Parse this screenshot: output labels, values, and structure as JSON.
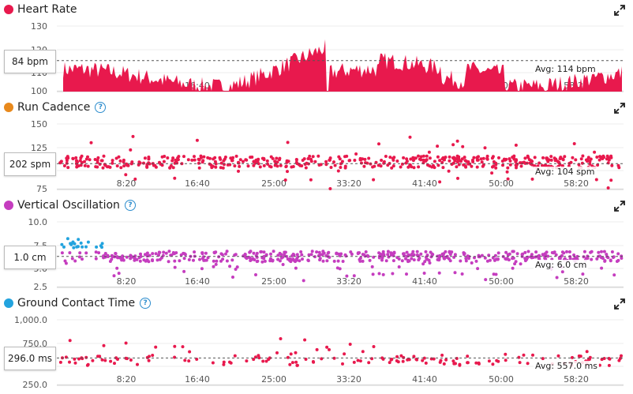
{
  "x_ticks": [
    "8:20",
    "16:40",
    "25:00",
    "33:20",
    "41:40",
    "50:00",
    "58:20"
  ],
  "panels": [
    {
      "key": "hr",
      "title": "Heart Rate",
      "color": "#e8194d",
      "help": false,
      "y_ticks": [
        "130",
        "120",
        "110",
        "100"
      ],
      "current": "84 bpm",
      "avg": "Avg: 114 bpm"
    },
    {
      "key": "cad",
      "title": "Run Cadence",
      "color": "#e8891c",
      "help": true,
      "y_ticks": [
        "150",
        "125",
        "100",
        "75"
      ],
      "current": "202 spm",
      "avg": "Avg: 104 spm"
    },
    {
      "key": "vo",
      "title": "Vertical Oscillation",
      "color": "#c53dbf",
      "help": true,
      "y_ticks": [
        "10.0",
        "7.5",
        "5.0",
        "2.5"
      ],
      "current": "1.0 cm",
      "avg": "Avg: 6.0 cm"
    },
    {
      "key": "gct",
      "title": "Ground Contact Time",
      "color": "#22a3de",
      "help": true,
      "y_ticks": [
        "1,000.0",
        "750.0",
        "500.0",
        "250.0"
      ],
      "current": "296.0 ms",
      "avg": "Avg: 557.0 ms"
    }
  ],
  "chart_data": [
    {
      "type": "area",
      "ylim": [
        100,
        130
      ],
      "avg": 114,
      "y_ticks": [
        130,
        120,
        110,
        100
      ]
    },
    {
      "type": "scatter",
      "ylim": [
        75,
        150
      ],
      "avg": 104,
      "y_ticks": [
        150,
        125,
        100,
        75
      ]
    },
    {
      "type": "scatter",
      "ylim": [
        2.5,
        10
      ],
      "avg": 6.0,
      "y_ticks": [
        10,
        7.5,
        5,
        2.5
      ]
    },
    {
      "type": "scatter",
      "ylim": [
        250,
        1000
      ],
      "avg": 557,
      "y_ticks": [
        1000,
        750,
        500,
        250
      ]
    }
  ]
}
